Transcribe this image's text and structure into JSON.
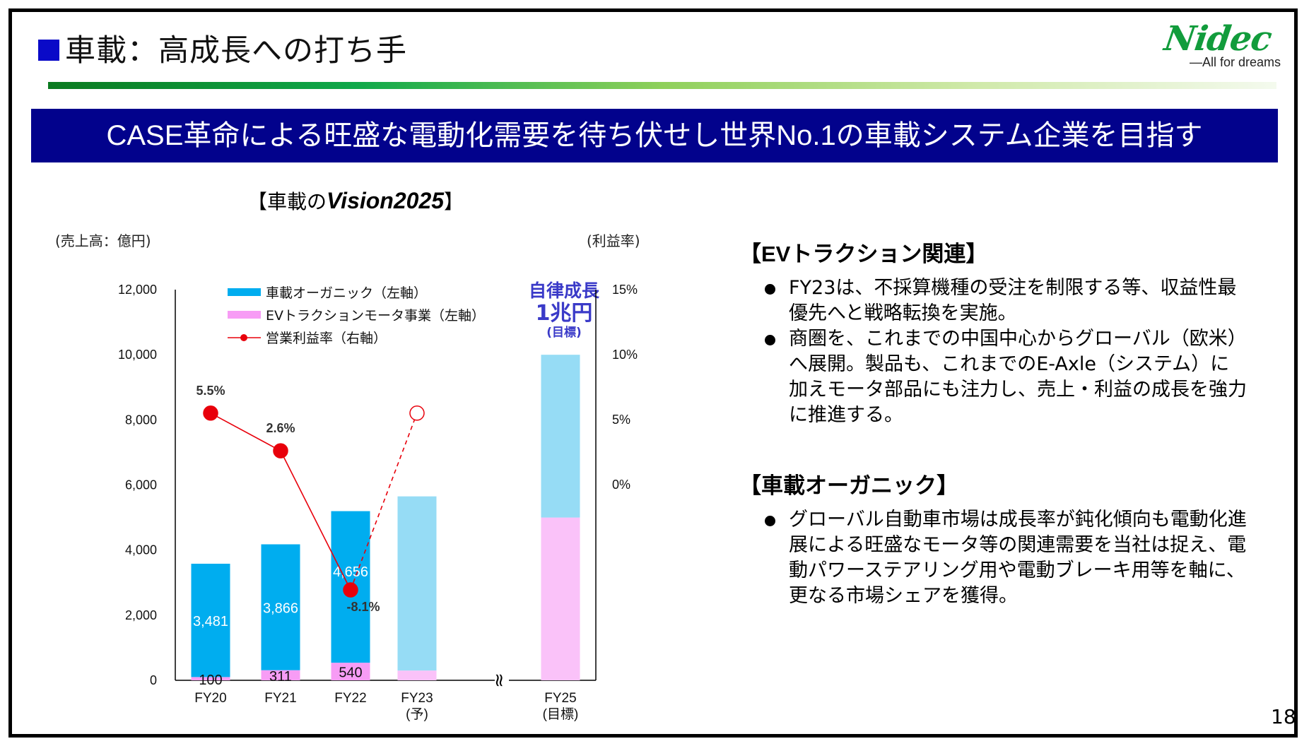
{
  "header": {
    "title": "車載：高成長への打ち手",
    "logo_word": "Nidec",
    "logo_tagline": "All for dreams"
  },
  "banner": {
    "text": "CASE革命による旺盛な電動化需要を待ち伏せし世界No.1の車載システム企業を目指す"
  },
  "chart_panel": {
    "title_prefix": "【車載の",
    "title_vision": "Vision2025",
    "title_suffix": "】",
    "unit_left": "(売上高：億円)",
    "unit_right": "(利益率)",
    "annotation": {
      "line1": "自律成長",
      "line2": "1兆円",
      "line3": "(目標)"
    },
    "axis_break_symbol": "≈"
  },
  "chart_data": {
    "type": "bar",
    "stacked": true,
    "title": "【車載のVision2025】",
    "categories": [
      "FY20",
      "FY21",
      "FY22",
      "FY23",
      "FY25"
    ],
    "category_sublabels": [
      "",
      "",
      "",
      "(予)",
      "(目標)"
    ],
    "ylabel": "(売上高：億円)",
    "y2label": "(利益率)",
    "ylim": [
      0,
      12000
    ],
    "y_ticks": [
      "0",
      "2,000",
      "4,000",
      "6,000",
      "8,000",
      "10,000",
      "12,000"
    ],
    "y_tick_values": [
      0,
      2000,
      4000,
      6000,
      8000,
      10000,
      12000
    ],
    "y2lim": [
      -15,
      15
    ],
    "y2_ticks": [
      "0%",
      "5%",
      "10%",
      "15%"
    ],
    "y2_tick_values": [
      0,
      5,
      10,
      15
    ],
    "legend_position": "top-left",
    "series": [
      {
        "name": "EVトラクションモータ事業（左軸）",
        "kind": "bar",
        "color": "#f79cf5",
        "light_color": "#fac2f9",
        "values": [
          100,
          311,
          540,
          300,
          5000
        ],
        "labels": [
          "100",
          "311",
          "540",
          "",
          ""
        ],
        "label_style": "dark"
      },
      {
        "name": "車載オーガニック（左軸）",
        "kind": "bar",
        "color": "#00adef",
        "light_color": "#96dcf5",
        "values": [
          3481,
          3866,
          4656,
          5350,
          5000
        ],
        "labels": [
          "3,481",
          "3,866",
          "4,656",
          "",
          ""
        ],
        "label_style": "white"
      },
      {
        "name": "営業利益率（右軸）",
        "kind": "line",
        "color": "#e8000b",
        "values": [
          5.5,
          2.6,
          -8.1,
          5.5,
          null
        ],
        "labels": [
          "5.5%",
          "2.6%",
          "-8.1%",
          "",
          ""
        ],
        "projected_from_index": 3
      }
    ],
    "projected_categories": [
      "FY23",
      "FY25"
    ]
  },
  "sections": [
    {
      "heading": "【EVトラクション関連】",
      "bullets": [
        "FY23は、不採算機種の受注を制限する等、収益性最優先へと戦略転換を実施。",
        "商圏を、これまでの中国中心からグローバル（欧米）へ展開。製品も、これまでのE-Axle（システム）に加えモータ部品にも注力し、売上・利益の成長を強力に推進する。"
      ]
    },
    {
      "heading": "【車載オーガニック】",
      "bullets": [
        "グローバル自動車市場は成長率が鈍化傾向も電動化進展による旺盛なモータ等の関連需要を当社は捉え、電動パワーステアリング用や電動ブレーキ用等を軸に、更なる市場シェアを獲得。"
      ]
    }
  ],
  "footer": {
    "page_number": "18"
  }
}
